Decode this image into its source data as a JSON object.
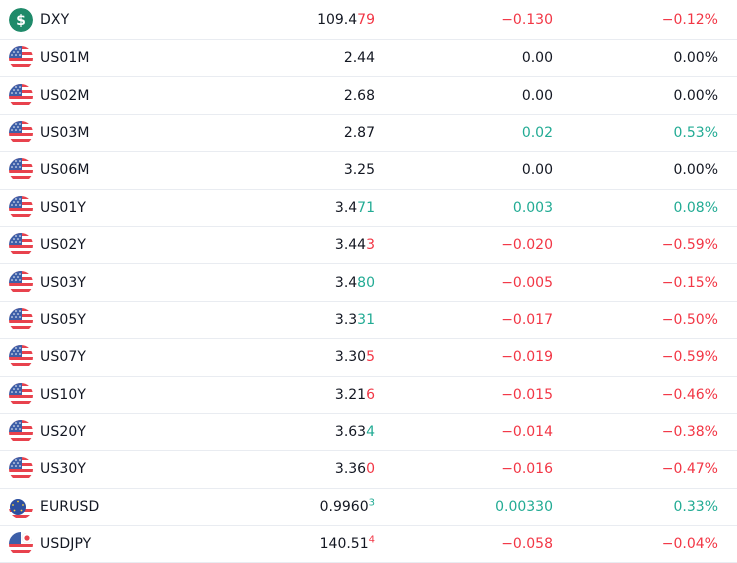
{
  "rows": [
    {
      "symbol": "DXY",
      "icon": "dollar-icon",
      "last_main": "109.4",
      "last_tail": "79",
      "last_tail_dir": "down",
      "last_sup": "",
      "change": "−0.130",
      "change_pct": "−0.12%",
      "dir": "down"
    },
    {
      "symbol": "US01M",
      "icon": "us-flag-icon",
      "last_main": "2.44",
      "last_tail": "",
      "last_tail_dir": "flat",
      "last_sup": "",
      "change": "0.00",
      "change_pct": "0.00%",
      "dir": "flat"
    },
    {
      "symbol": "US02M",
      "icon": "us-flag-icon",
      "last_main": "2.68",
      "last_tail": "",
      "last_tail_dir": "flat",
      "last_sup": "",
      "change": "0.00",
      "change_pct": "0.00%",
      "dir": "flat"
    },
    {
      "symbol": "US03M",
      "icon": "us-flag-icon",
      "last_main": "2.87",
      "last_tail": "",
      "last_tail_dir": "flat",
      "last_sup": "",
      "change": "0.02",
      "change_pct": "0.53%",
      "dir": "up"
    },
    {
      "symbol": "US06M",
      "icon": "us-flag-icon",
      "last_main": "3.25",
      "last_tail": "",
      "last_tail_dir": "flat",
      "last_sup": "",
      "change": "0.00",
      "change_pct": "0.00%",
      "dir": "flat"
    },
    {
      "symbol": "US01Y",
      "icon": "us-flag-icon",
      "last_main": "3.4",
      "last_tail": "71",
      "last_tail_dir": "up",
      "last_sup": "",
      "change": "0.003",
      "change_pct": "0.08%",
      "dir": "up"
    },
    {
      "symbol": "US02Y",
      "icon": "us-flag-icon",
      "last_main": "3.44",
      "last_tail": "3",
      "last_tail_dir": "down",
      "last_sup": "",
      "change": "−0.020",
      "change_pct": "−0.59%",
      "dir": "down"
    },
    {
      "symbol": "US03Y",
      "icon": "us-flag-icon",
      "last_main": "3.4",
      "last_tail": "80",
      "last_tail_dir": "up",
      "last_sup": "",
      "change": "−0.005",
      "change_pct": "−0.15%",
      "dir": "down"
    },
    {
      "symbol": "US05Y",
      "icon": "us-flag-icon",
      "last_main": "3.3",
      "last_tail": "31",
      "last_tail_dir": "up",
      "last_sup": "",
      "change": "−0.017",
      "change_pct": "−0.50%",
      "dir": "down"
    },
    {
      "symbol": "US07Y",
      "icon": "us-flag-icon",
      "last_main": "3.30",
      "last_tail": "5",
      "last_tail_dir": "down",
      "last_sup": "",
      "change": "−0.019",
      "change_pct": "−0.59%",
      "dir": "down"
    },
    {
      "symbol": "US10Y",
      "icon": "us-flag-icon",
      "last_main": "3.21",
      "last_tail": "6",
      "last_tail_dir": "down",
      "last_sup": "",
      "change": "−0.015",
      "change_pct": "−0.46%",
      "dir": "down"
    },
    {
      "symbol": "US20Y",
      "icon": "us-flag-icon",
      "last_main": "3.63",
      "last_tail": "4",
      "last_tail_dir": "up",
      "last_sup": "",
      "change": "−0.014",
      "change_pct": "−0.38%",
      "dir": "down"
    },
    {
      "symbol": "US30Y",
      "icon": "us-flag-icon",
      "last_main": "3.36",
      "last_tail": "0",
      "last_tail_dir": "down",
      "last_sup": "",
      "change": "−0.016",
      "change_pct": "−0.47%",
      "dir": "down"
    },
    {
      "symbol": "EURUSD",
      "icon": "eu-us-flag-icon",
      "last_main": "0.9960",
      "last_tail": "",
      "last_tail_dir": "flat",
      "last_sup": "3",
      "change": "0.00330",
      "change_pct": "0.33%",
      "dir": "up"
    },
    {
      "symbol": "USDJPY",
      "icon": "us-jp-flag-icon",
      "last_main": "140.51",
      "last_tail": "",
      "last_tail_dir": "flat",
      "last_sup": "4",
      "change": "−0.058",
      "change_pct": "−0.04%",
      "dir": "down"
    }
  ],
  "colors": {
    "up": "#22ab94",
    "down": "#f23645",
    "text": "#131722",
    "divider": "#e9ecf1"
  }
}
